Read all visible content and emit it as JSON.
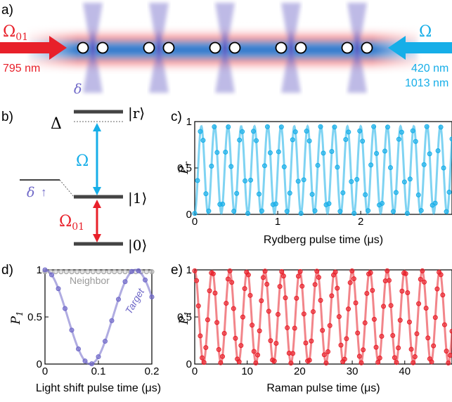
{
  "figure": {
    "colors": {
      "red": "#e8202a",
      "cyan": "#16aee8",
      "purple": "#6f68c8",
      "blue": "#3978c4",
      "gray": "#9a9a9a",
      "dark": "#444444"
    }
  },
  "panel_a": {
    "label": "a)",
    "omega01": "Ω",
    "omega01_sub": "01",
    "omega": "Ω",
    "wavelength_left": "795 nm",
    "wavelength_right_1": "420 nm",
    "wavelength_right_2": "1013 nm",
    "delta": "δ",
    "atom_pairs": 5
  },
  "panel_b": {
    "label": "b)",
    "Delta": "Δ",
    "state_r": "|r⟩",
    "state_1": "|1⟩",
    "state_0": "|0⟩",
    "omega": "Ω",
    "omega01": "Ω",
    "omega01_sub": "01",
    "delta": "δ",
    "delta_arrow": "↑"
  },
  "chart_data": [
    {
      "panel": "c)",
      "type": "scatter",
      "xlabel": "Rydberg pulse time (μs)",
      "ylabel": "P",
      "ylabel_sub": "r",
      "xlim": [
        0,
        3.1
      ],
      "ylim": [
        0,
        1
      ],
      "xticks": [
        "0",
        "1",
        "2"
      ],
      "xtick_values": [
        0,
        1,
        2
      ],
      "yticks": [
        "0",
        "0.5",
        "1"
      ],
      "ytick_values": [
        0,
        0.5,
        1
      ],
      "model": {
        "kind": "rabi",
        "frequency": 6.25,
        "amplitude": 0.47,
        "offset": 0.48,
        "x_max": 3.1,
        "points": 93,
        "fit": true
      },
      "color": "#16aee8"
    },
    {
      "panel": "d)",
      "type": "scatter",
      "xlabel": "Light shift pulse time (μs)",
      "ylabel": "P",
      "ylabel_sub": "1",
      "xlim": [
        0,
        0.2
      ],
      "ylim": [
        0,
        1
      ],
      "xticks": [
        "0",
        "0.1",
        "0.2"
      ],
      "xtick_values": [
        0,
        0.1,
        0.2
      ],
      "yticks": [
        "0",
        "0.5",
        "1"
      ],
      "ytick_values": [
        0,
        0.5,
        1
      ],
      "annotations": [
        "Neighbor",
        "Target"
      ],
      "series": [
        {
          "name": "Neighbor",
          "model": {
            "kind": "flat",
            "value": 0.98,
            "x_max": 0.2,
            "points": 21
          },
          "color": "#9a9a9a"
        },
        {
          "name": "Target",
          "model": {
            "kind": "cos",
            "frequency": 5.9,
            "amplitude": 0.5,
            "offset": 0.5,
            "x_max": 0.2,
            "points": 17,
            "fit": true
          },
          "color": "#6f68c8"
        }
      ]
    },
    {
      "panel": "e)",
      "type": "scatter",
      "xlabel": "Raman pulse time (μs)",
      "ylabel": "P",
      "ylabel_sub": "1",
      "xlim": [
        0,
        49
      ],
      "ylim": [
        0,
        1
      ],
      "xticks": [
        "0",
        "10",
        "20",
        "30",
        "40"
      ],
      "xtick_values": [
        0,
        10,
        20,
        30,
        40
      ],
      "yticks": [
        "0",
        "0.5",
        "1"
      ],
      "ytick_values": [
        0,
        0.5,
        1
      ],
      "model": {
        "kind": "cos",
        "frequency": 0.3,
        "amplitude": 0.49,
        "offset": 0.5,
        "x_max": 49,
        "points": 140,
        "fit": true
      },
      "color": "#e8202a"
    }
  ]
}
